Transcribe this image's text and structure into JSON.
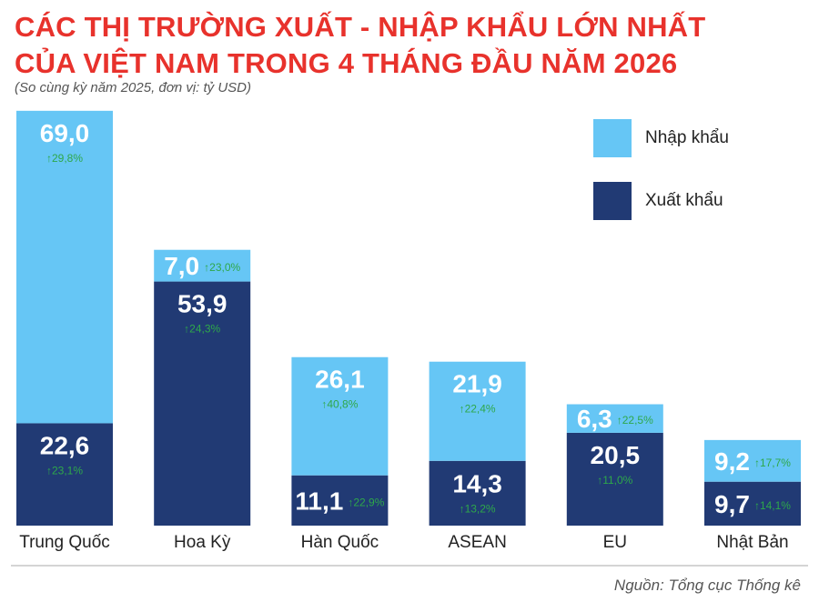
{
  "title_line1": "CÁC THỊ TRƯỜNG XUẤT - NHẬP KHẨU LỚN NHẤT",
  "title_line2": "CỦA VIỆT NAM TRONG 4 THÁNG ĐẦU NĂM 2026",
  "subtitle": "(So cùng kỳ năm 2025, đơn vị: tỷ USD)",
  "source": "Nguồn: Tổng cục Thống kê",
  "colors": {
    "import": "#66c6f5",
    "export": "#213a74",
    "growth": "#2ea84a",
    "baseline": "#a8a8a8"
  },
  "chart_data": {
    "type": "bar",
    "stacked": true,
    "categories": [
      "Trung Quốc",
      "Hoa Kỳ",
      "Hàn Quốc",
      "ASEAN",
      "EU",
      "Nhật Bản"
    ],
    "series": [
      {
        "name": "Xuất khẩu",
        "values": [
          22.6,
          53.9,
          11.1,
          14.3,
          20.5,
          9.7
        ],
        "value_labels": [
          "22,6",
          "53,9",
          "11,1",
          "14,3",
          "20,5",
          "9,7"
        ],
        "growth_labels": [
          "23,1%",
          "24,3%",
          "22,9%",
          "13,2%",
          "11,0%",
          "14,1%"
        ]
      },
      {
        "name": "Nhập khẩu",
        "values": [
          69.0,
          7.0,
          26.1,
          21.9,
          6.3,
          9.2
        ],
        "value_labels": [
          "69,0",
          "7,0",
          "26,1",
          "21,9",
          "6,3",
          "9,2"
        ],
        "growth_labels": [
          "29,8%",
          "23,0%",
          "40,8%",
          "22,4%",
          "22,5%",
          "17,7%"
        ]
      }
    ],
    "legend": [
      "Nhập khẩu",
      "Xuất khẩu"
    ],
    "legend_position": "top-right",
    "grid": false,
    "title": "CÁC THỊ TRƯỜNG XUẤT - NHẬP KHẨU LỚN NHẤT CỦA VIỆT NAM TRONG 4 THÁNG ĐẦU NĂM 2026",
    "xlabel": "",
    "ylabel": ""
  }
}
